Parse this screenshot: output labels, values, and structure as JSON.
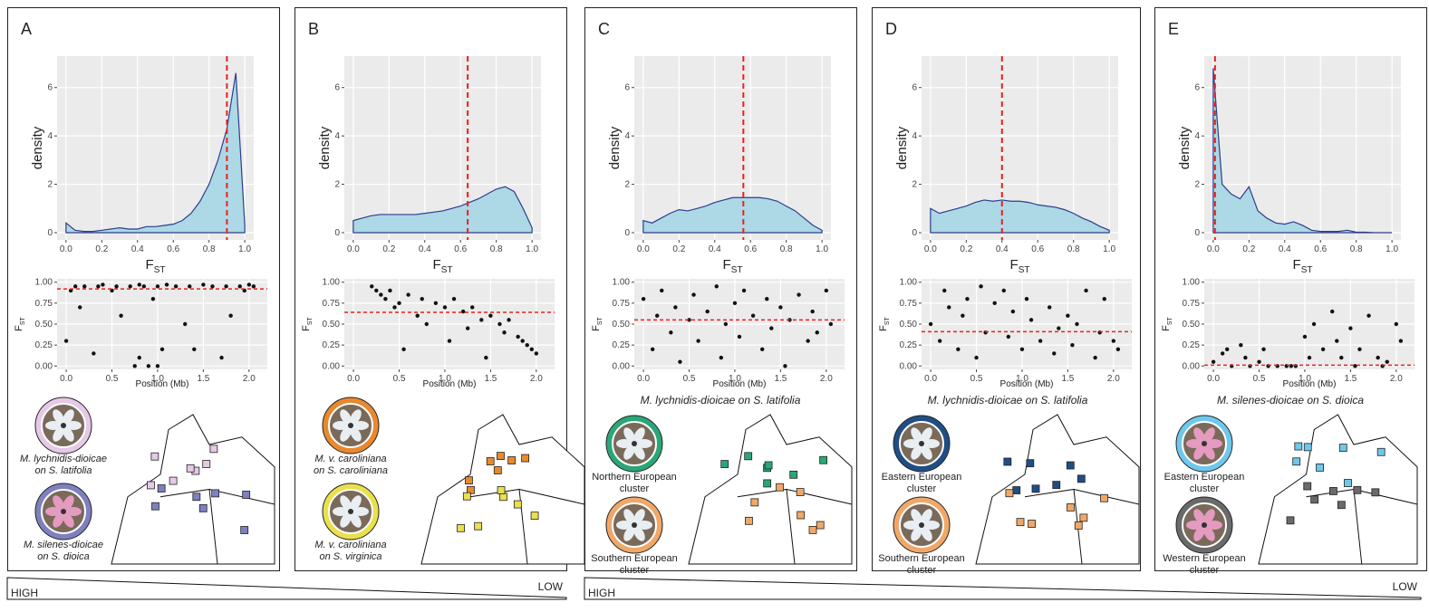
{
  "panels": [
    {
      "label": "A",
      "legend": [
        {
          "lines": [
            "M. lychnidis-dioicae",
            "on S. latifolia"
          ],
          "color": "#e6c9e6"
        },
        {
          "lines": [
            "M. silenes-dioicae",
            "on S. dioica"
          ],
          "color": "#7f80c0"
        }
      ]
    },
    {
      "label": "B",
      "legend": [
        {
          "lines": [
            "M. v. caroliniana",
            "on S. caroliniana"
          ],
          "color": "#e8892e"
        },
        {
          "lines": [
            "M. v. caroliniana",
            "on S. virginica"
          ],
          "color": "#e9e04c"
        }
      ]
    },
    {
      "label": "C",
      "map_title": "M. lychnidis-dioicae on S. latifolia",
      "legend": [
        {
          "lines": [
            "Northern European",
            "cluster"
          ],
          "color": "#2aa777"
        },
        {
          "lines": [
            "Southern European",
            "cluster"
          ],
          "color": "#f0a868"
        }
      ]
    },
    {
      "label": "D",
      "map_title": "M. lychnidis-dioicae on S. latifolia",
      "legend": [
        {
          "lines": [
            "Eastern European",
            "cluster"
          ],
          "color": "#1f4e86"
        },
        {
          "lines": [
            "Southern European",
            "cluster"
          ],
          "color": "#f0a868"
        }
      ]
    },
    {
      "label": "E",
      "map_title": "M. silenes-dioicae on S. dioica",
      "legend": [
        {
          "lines": [
            "Eastern European",
            "cluster"
          ],
          "color": "#6ec8ec"
        },
        {
          "lines": [
            "Western European",
            "cluster"
          ],
          "color": "#6a6a6a"
        }
      ]
    }
  ],
  "gradients": [
    {
      "high": "HIGH",
      "low": "LOW"
    },
    {
      "high": "HIGH",
      "low": "LOW"
    }
  ],
  "chart_data": [
    {
      "type": "area",
      "ylabel": "density",
      "xlabel": "F",
      "xlabel_sub": "ST",
      "color": "#add8e6",
      "line_color": "#2c3e8c",
      "vline": 0.9,
      "vline_color": "#e8221f",
      "xlim": [
        -0.05,
        1.05
      ],
      "ylim": [
        -0.3,
        7.3
      ],
      "xticks": [
        {
          "value": 0,
          "label": "0.0"
        },
        {
          "value": 0.2,
          "label": "0.2"
        },
        {
          "value": 0.4,
          "label": "0.4"
        },
        {
          "value": 0.6,
          "label": "0.6"
        },
        {
          "value": 0.8,
          "label": "0.8"
        },
        {
          "value": 1,
          "label": "1.0"
        }
      ],
      "yticks": [
        0,
        2,
        4,
        6
      ],
      "grid": true,
      "x": [
        0,
        0.05,
        0.1,
        0.15,
        0.2,
        0.25,
        0.3,
        0.35,
        0.4,
        0.45,
        0.5,
        0.55,
        0.6,
        0.65,
        0.7,
        0.75,
        0.8,
        0.85,
        0.9,
        0.95,
        1
      ],
      "values": [
        0.4,
        0.1,
        0.05,
        0.05,
        0.1,
        0.15,
        0.2,
        0.15,
        0.15,
        0.25,
        0.25,
        0.3,
        0.35,
        0.5,
        0.8,
        1.3,
        2,
        3,
        4.3,
        6.6,
        0.3
      ]
    },
    {
      "type": "scatter",
      "ylabel": "F",
      "ylabel_sub": "ST",
      "xlabel": "Position (Mb)",
      "hline": 0.92,
      "hline_color": "#e8221f",
      "xlim": [
        -0.1,
        2.2
      ],
      "ylim": [
        -0.04,
        1.04
      ],
      "xticks": [
        {
          "value": 0,
          "label": "0.0"
        },
        {
          "value": 0.5,
          "label": "0.5"
        },
        {
          "value": 1,
          "label": "1.0"
        },
        {
          "value": 1.5,
          "label": "1.5"
        },
        {
          "value": 2,
          "label": "2.0"
        }
      ],
      "yticks": [
        {
          "value": 0,
          "label": "0.00"
        },
        {
          "value": 0.25,
          "label": "0.25"
        },
        {
          "value": 0.5,
          "label": "0.50"
        },
        {
          "value": 0.75,
          "label": "0.75"
        },
        {
          "value": 1,
          "label": "1.00"
        }
      ],
      "grid": true,
      "x": [
        0,
        0.05,
        0.1,
        0.15,
        0.2,
        0.3,
        0.35,
        0.4,
        0.5,
        0.55,
        0.6,
        0.7,
        0.75,
        0.8,
        0.85,
        0.9,
        0.95,
        1,
        1.05,
        1.1,
        1.2,
        1.3,
        1.35,
        1.4,
        1.5,
        1.6,
        1.7,
        1.75,
        1.8,
        1.9,
        1.95,
        2,
        2.05,
        0.8,
        1
      ],
      "values": [
        0.3,
        0.9,
        0.95,
        0.7,
        0.95,
        0.15,
        0.95,
        0.97,
        0.9,
        0.95,
        0.6,
        0.95,
        0,
        0.97,
        0.95,
        0,
        0.8,
        0.95,
        0.2,
        0.97,
        0.95,
        0.5,
        0.95,
        0.2,
        0.97,
        0.95,
        0.1,
        0.95,
        0.6,
        0.95,
        0.9,
        0.97,
        0.95,
        0.1,
        0
      ]
    },
    {
      "type": "area",
      "ylabel": "density",
      "xlabel": "F",
      "xlabel_sub": "ST",
      "color": "#add8e6",
      "line_color": "#2c3e8c",
      "vline": 0.64,
      "vline_color": "#e8221f",
      "xlim": [
        -0.05,
        1.05
      ],
      "ylim": [
        -0.3,
        7.3
      ],
      "xticks": [
        {
          "value": 0,
          "label": "0.0"
        },
        {
          "value": 0.2,
          "label": "0.2"
        },
        {
          "value": 0.4,
          "label": "0.4"
        },
        {
          "value": 0.6,
          "label": "0.6"
        },
        {
          "value": 0.8,
          "label": "0.8"
        },
        {
          "value": 1,
          "label": "1.0"
        }
      ],
      "yticks": [
        0,
        2,
        4,
        6
      ],
      "grid": true,
      "x": [
        0,
        0.05,
        0.1,
        0.15,
        0.2,
        0.25,
        0.3,
        0.35,
        0.4,
        0.45,
        0.5,
        0.55,
        0.6,
        0.65,
        0.7,
        0.75,
        0.8,
        0.85,
        0.9,
        0.95,
        1
      ],
      "values": [
        0.5,
        0.6,
        0.7,
        0.75,
        0.75,
        0.75,
        0.75,
        0.75,
        0.8,
        0.85,
        0.9,
        1,
        1.1,
        1.25,
        1.4,
        1.6,
        1.8,
        1.9,
        1.7,
        1,
        0.2
      ]
    },
    {
      "type": "scatter",
      "ylabel": "F",
      "ylabel_sub": "ST",
      "xlabel": "Position (Mb)",
      "hline": 0.64,
      "hline_color": "#e8221f",
      "xlim": [
        -0.1,
        2.2
      ],
      "ylim": [
        -0.04,
        1.04
      ],
      "xticks": [
        {
          "value": 0,
          "label": "0.0"
        },
        {
          "value": 0.5,
          "label": "0.5"
        },
        {
          "value": 1,
          "label": "1.0"
        },
        {
          "value": 1.5,
          "label": "1.5"
        },
        {
          "value": 2,
          "label": "2.0"
        }
      ],
      "yticks": [
        {
          "value": 0,
          "label": "0.00"
        },
        {
          "value": 0.25,
          "label": "0.25"
        },
        {
          "value": 0.5,
          "label": "0.50"
        },
        {
          "value": 0.75,
          "label": "0.75"
        },
        {
          "value": 1,
          "label": "1.00"
        }
      ],
      "grid": true,
      "x": [
        0.2,
        0.25,
        0.3,
        0.35,
        0.4,
        0.45,
        0.5,
        0.55,
        0.6,
        0.7,
        0.75,
        0.8,
        0.9,
        1,
        1.05,
        1.1,
        1.2,
        1.25,
        1.3,
        1.4,
        1.45,
        1.5,
        1.6,
        1.65,
        1.7,
        1.8,
        1.85,
        1.9,
        1.95,
        2
      ],
      "values": [
        0.95,
        0.9,
        0.85,
        0.8,
        0.9,
        0.7,
        0.75,
        0.2,
        0.85,
        0.6,
        0.8,
        0.5,
        0.75,
        0.7,
        0.3,
        0.8,
        0.65,
        0.45,
        0.7,
        0.55,
        0.1,
        0.6,
        0.5,
        0.4,
        0.55,
        0.35,
        0.3,
        0.25,
        0.2,
        0.15
      ]
    },
    {
      "type": "area",
      "ylabel": "density",
      "xlabel": "F",
      "xlabel_sub": "ST",
      "color": "#add8e6",
      "line_color": "#2c3e8c",
      "vline": 0.56,
      "vline_color": "#e8221f",
      "xlim": [
        -0.05,
        1.05
      ],
      "ylim": [
        -0.3,
        7.3
      ],
      "xticks": [
        {
          "value": 0,
          "label": "0.0"
        },
        {
          "value": 0.2,
          "label": "0.2"
        },
        {
          "value": 0.4,
          "label": "0.4"
        },
        {
          "value": 0.6,
          "label": "0.6"
        },
        {
          "value": 0.8,
          "label": "0.8"
        },
        {
          "value": 1,
          "label": "1.0"
        }
      ],
      "yticks": [
        0,
        2,
        4,
        6
      ],
      "grid": true,
      "x": [
        0,
        0.05,
        0.1,
        0.15,
        0.2,
        0.25,
        0.3,
        0.35,
        0.4,
        0.45,
        0.5,
        0.55,
        0.6,
        0.65,
        0.7,
        0.75,
        0.8,
        0.85,
        0.9,
        0.95,
        1
      ],
      "values": [
        0.5,
        0.4,
        0.6,
        0.8,
        0.95,
        0.9,
        1,
        1.1,
        1.25,
        1.35,
        1.45,
        1.45,
        1.45,
        1.45,
        1.4,
        1.3,
        1.1,
        0.9,
        0.6,
        0.3,
        0.1
      ]
    },
    {
      "type": "scatter",
      "ylabel": "F",
      "ylabel_sub": "ST",
      "xlabel": "Position (Mb)",
      "hline": 0.55,
      "hline_color": "#e8221f",
      "xlim": [
        -0.1,
        2.2
      ],
      "ylim": [
        -0.04,
        1.04
      ],
      "xticks": [
        {
          "value": 0,
          "label": "0.0"
        },
        {
          "value": 0.5,
          "label": "0.5"
        },
        {
          "value": 1,
          "label": "1.0"
        },
        {
          "value": 1.5,
          "label": "1.5"
        },
        {
          "value": 2,
          "label": "2.0"
        }
      ],
      "yticks": [
        {
          "value": 0,
          "label": "0.00"
        },
        {
          "value": 0.25,
          "label": "0.25"
        },
        {
          "value": 0.5,
          "label": "0.50"
        },
        {
          "value": 0.75,
          "label": "0.75"
        },
        {
          "value": 1,
          "label": "1.00"
        }
      ],
      "grid": true,
      "x": [
        0,
        0.1,
        0.15,
        0.2,
        0.3,
        0.35,
        0.4,
        0.5,
        0.55,
        0.6,
        0.7,
        0.8,
        0.85,
        0.9,
        1,
        1.05,
        1.1,
        1.2,
        1.3,
        1.35,
        1.4,
        1.5,
        1.55,
        1.6,
        1.7,
        1.8,
        1.85,
        1.9,
        2,
        2.05
      ],
      "values": [
        0.8,
        0.2,
        0.6,
        0.9,
        0.4,
        0.7,
        0.05,
        0.55,
        0.85,
        0.3,
        0.65,
        0.95,
        0.1,
        0.5,
        0.75,
        0.35,
        0.9,
        0.6,
        0.2,
        0.8,
        0.45,
        0.7,
        0,
        0.55,
        0.85,
        0.3,
        0.65,
        0.4,
        0.9,
        0.5
      ]
    },
    {
      "type": "area",
      "ylabel": "density",
      "xlabel": "F",
      "xlabel_sub": "ST",
      "color": "#add8e6",
      "line_color": "#2c3e8c",
      "vline": 0.4,
      "vline_color": "#e8221f",
      "xlim": [
        -0.05,
        1.05
      ],
      "ylim": [
        -0.3,
        7.3
      ],
      "xticks": [
        {
          "value": 0,
          "label": "0.0"
        },
        {
          "value": 0.2,
          "label": "0.2"
        },
        {
          "value": 0.4,
          "label": "0.4"
        },
        {
          "value": 0.6,
          "label": "0.6"
        },
        {
          "value": 0.8,
          "label": "0.8"
        },
        {
          "value": 1,
          "label": "1.0"
        }
      ],
      "yticks": [
        0,
        2,
        4,
        6
      ],
      "grid": true,
      "x": [
        0,
        0.05,
        0.1,
        0.15,
        0.2,
        0.25,
        0.3,
        0.35,
        0.4,
        0.45,
        0.5,
        0.55,
        0.6,
        0.65,
        0.7,
        0.75,
        0.8,
        0.85,
        0.9,
        0.95,
        1
      ],
      "values": [
        1,
        0.8,
        0.9,
        1,
        1.1,
        1.25,
        1.35,
        1.3,
        1.35,
        1.3,
        1.3,
        1.25,
        1.15,
        1.1,
        1.05,
        0.95,
        0.8,
        0.6,
        0.45,
        0.25,
        0.1
      ]
    },
    {
      "type": "scatter",
      "ylabel": "F",
      "ylabel_sub": "ST",
      "xlabel": "Position (Mb)",
      "hline": 0.41,
      "hline_color": "#e8221f",
      "xlim": [
        -0.1,
        2.2
      ],
      "ylim": [
        -0.04,
        1.04
      ],
      "xticks": [
        {
          "value": 0,
          "label": "0.0"
        },
        {
          "value": 0.5,
          "label": "0.5"
        },
        {
          "value": 1,
          "label": "1.0"
        },
        {
          "value": 1.5,
          "label": "1.5"
        },
        {
          "value": 2,
          "label": "2.0"
        }
      ],
      "yticks": [
        {
          "value": 0,
          "label": "0.00"
        },
        {
          "value": 0.25,
          "label": "0.25"
        },
        {
          "value": 0.5,
          "label": "0.50"
        },
        {
          "value": 0.75,
          "label": "0.75"
        },
        {
          "value": 1,
          "label": "1.00"
        }
      ],
      "grid": true,
      "x": [
        0,
        0.1,
        0.15,
        0.2,
        0.3,
        0.35,
        0.4,
        0.5,
        0.55,
        0.6,
        0.7,
        0.8,
        0.85,
        0.9,
        1,
        1.05,
        1.1,
        1.2,
        1.3,
        1.35,
        1.4,
        1.5,
        1.55,
        1.6,
        1.7,
        1.8,
        1.85,
        1.9,
        2,
        2.05
      ],
      "values": [
        0.5,
        0.3,
        0.9,
        0.7,
        0.2,
        0.6,
        0.8,
        0.1,
        0.95,
        0.4,
        0.75,
        0.9,
        0.35,
        0.65,
        0.2,
        0.8,
        0.55,
        0.3,
        0.7,
        0.15,
        0.45,
        0.6,
        0.25,
        0.5,
        0.9,
        0.1,
        0.4,
        0.8,
        0.3,
        0.2
      ]
    },
    {
      "type": "area",
      "ylabel": "density",
      "xlabel": "F",
      "xlabel_sub": "ST",
      "color": "#add8e6",
      "line_color": "#2c3e8c",
      "vline": 0.01,
      "vline_color": "#e8221f",
      "xlim": [
        -0.05,
        1.05
      ],
      "ylim": [
        -0.3,
        7.3
      ],
      "xticks": [
        {
          "value": 0,
          "label": "0.0"
        },
        {
          "value": 0.2,
          "label": "0.2"
        },
        {
          "value": 0.4,
          "label": "0.4"
        },
        {
          "value": 0.6,
          "label": "0.6"
        },
        {
          "value": 0.8,
          "label": "0.8"
        },
        {
          "value": 1,
          "label": "1.0"
        }
      ],
      "yticks": [
        0,
        2,
        4,
        6
      ],
      "grid": true,
      "x": [
        0,
        0.05,
        0.1,
        0.15,
        0.2,
        0.25,
        0.3,
        0.35,
        0.4,
        0.45,
        0.5,
        0.55,
        0.6,
        0.65,
        0.7,
        0.75,
        0.8,
        0.85,
        0.9,
        0.95,
        1
      ],
      "values": [
        6.8,
        2,
        1.6,
        1.4,
        1.9,
        0.9,
        0.6,
        0.4,
        0.35,
        0.45,
        0.3,
        0.1,
        0.05,
        0.05,
        0.05,
        0.1,
        0.02,
        0.02,
        0,
        0,
        0
      ]
    },
    {
      "type": "scatter",
      "ylabel": "F",
      "ylabel_sub": "ST",
      "xlabel": "Position (Mb)",
      "hline": 0.01,
      "hline_color": "#e8221f",
      "xlim": [
        -0.1,
        2.2
      ],
      "ylim": [
        -0.04,
        1.04
      ],
      "xticks": [
        {
          "value": 0,
          "label": "0.0"
        },
        {
          "value": 0.5,
          "label": "0.5"
        },
        {
          "value": 1,
          "label": "1.0"
        },
        {
          "value": 1.5,
          "label": "1.5"
        },
        {
          "value": 2,
          "label": "2.0"
        }
      ],
      "yticks": [
        {
          "value": 0,
          "label": "0.00"
        },
        {
          "value": 0.25,
          "label": "0.25"
        },
        {
          "value": 0.5,
          "label": "0.50"
        },
        {
          "value": 0.75,
          "label": "0.75"
        },
        {
          "value": 1,
          "label": "1.00"
        }
      ],
      "grid": true,
      "x": [
        0,
        0.1,
        0.15,
        0.2,
        0.3,
        0.35,
        0.4,
        0.5,
        0.55,
        0.6,
        0.7,
        0.8,
        0.85,
        0.9,
        1,
        1.05,
        1.1,
        1.2,
        1.3,
        1.35,
        1.4,
        1.5,
        1.55,
        1.6,
        1.7,
        1.8,
        1.85,
        1.9,
        2,
        2.05
      ],
      "values": [
        0.05,
        0.15,
        0.2,
        0,
        0.25,
        0.1,
        0,
        0.05,
        0.2,
        0,
        0,
        0,
        0,
        0,
        0.35,
        0.1,
        0.5,
        0.2,
        0.65,
        0.3,
        0.1,
        0.45,
        0,
        0.2,
        0.6,
        0.1,
        0,
        0.05,
        0.5,
        0.3
      ]
    }
  ]
}
